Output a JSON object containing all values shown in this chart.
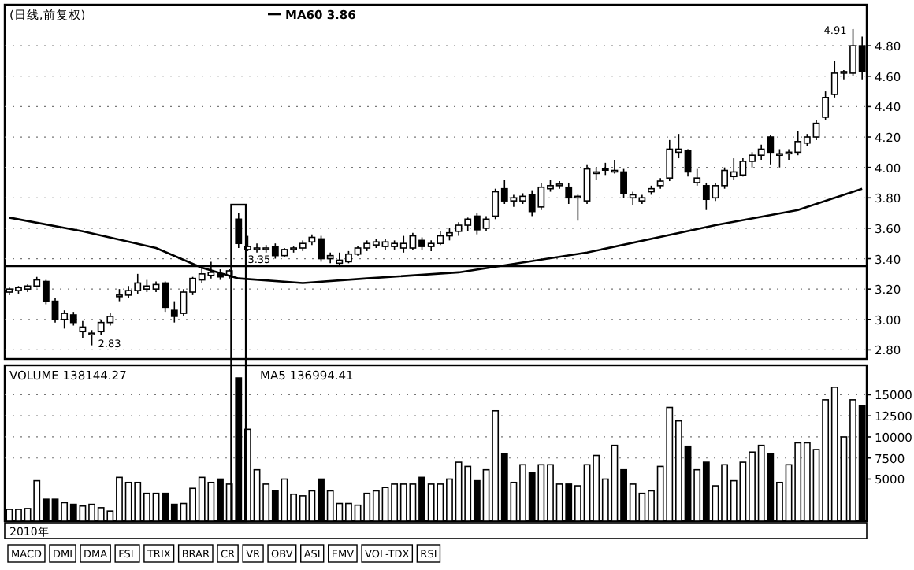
{
  "chart_data": [
    {
      "type": "candlestick",
      "title": "(日线,前复权)",
      "color": "#000000",
      "legend": "top left",
      "grid": "y",
      "categories": [
        null,
        null,
        null,
        null,
        null,
        null,
        null,
        null,
        null,
        null,
        null,
        null,
        null,
        null,
        null,
        null,
        null,
        null,
        null,
        null,
        null,
        null,
        null,
        null,
        null,
        null,
        null,
        null,
        null,
        null,
        null,
        null,
        null,
        null,
        null,
        null,
        null,
        null,
        null,
        null,
        null,
        null,
        null,
        null,
        null,
        null,
        null,
        null,
        null,
        null,
        null,
        null,
        null,
        null,
        null,
        null,
        null,
        null,
        null,
        null,
        null,
        null,
        null,
        null,
        null,
        null,
        null,
        null,
        null,
        null,
        null,
        null,
        null,
        null,
        null,
        null,
        null,
        null,
        null,
        null,
        null,
        null,
        null,
        null,
        null,
        null,
        null,
        null,
        null,
        null,
        null,
        null,
        null,
        null
      ],
      "ohlc": [
        [
          3.18,
          3.21,
          3.16,
          3.2
        ],
        [
          3.19,
          3.22,
          3.17,
          3.21
        ],
        [
          3.2,
          3.23,
          3.18,
          3.22
        ],
        [
          3.22,
          3.28,
          3.21,
          3.26
        ],
        [
          3.25,
          3.26,
          3.1,
          3.12
        ],
        [
          3.12,
          3.14,
          2.98,
          3.0
        ],
        [
          3.0,
          3.06,
          2.94,
          3.04
        ],
        [
          3.03,
          3.05,
          2.96,
          2.98
        ],
        [
          2.92,
          2.99,
          2.88,
          2.95
        ],
        [
          2.9,
          2.93,
          2.83,
          2.91
        ],
        [
          2.92,
          3.0,
          2.9,
          2.98
        ],
        [
          2.98,
          3.04,
          2.96,
          3.02
        ],
        [
          3.15,
          3.2,
          3.12,
          3.16
        ],
        [
          3.16,
          3.22,
          3.14,
          3.19
        ],
        [
          3.19,
          3.3,
          3.17,
          3.24
        ],
        [
          3.2,
          3.26,
          3.18,
          3.22
        ],
        [
          3.2,
          3.25,
          3.18,
          3.23
        ],
        [
          3.24,
          3.25,
          3.05,
          3.08
        ],
        [
          3.06,
          3.12,
          2.98,
          3.02
        ],
        [
          3.04,
          3.2,
          3.02,
          3.18
        ],
        [
          3.18,
          3.28,
          3.16,
          3.27
        ],
        [
          3.26,
          3.34,
          3.24,
          3.3
        ],
        [
          3.29,
          3.38,
          3.27,
          3.31
        ],
        [
          3.3,
          3.33,
          3.26,
          3.28
        ],
        [
          3.29,
          3.33,
          3.27,
          3.32
        ],
        [
          3.66,
          3.7,
          3.47,
          3.5
        ],
        [
          3.46,
          3.55,
          3.45,
          3.48
        ],
        [
          3.46,
          3.5,
          3.44,
          3.47
        ],
        [
          3.46,
          3.49,
          3.44,
          3.47
        ],
        [
          3.48,
          3.5,
          3.4,
          3.42
        ],
        [
          3.42,
          3.47,
          3.41,
          3.46
        ],
        [
          3.46,
          3.48,
          3.44,
          3.47
        ],
        [
          3.47,
          3.52,
          3.45,
          3.5
        ],
        [
          3.51,
          3.56,
          3.49,
          3.54
        ],
        [
          3.53,
          3.55,
          3.38,
          3.4
        ],
        [
          3.4,
          3.44,
          3.37,
          3.42
        ],
        [
          3.37,
          3.44,
          3.36,
          3.39
        ],
        [
          3.38,
          3.45,
          3.37,
          3.43
        ],
        [
          3.43,
          3.48,
          3.42,
          3.47
        ],
        [
          3.47,
          3.52,
          3.45,
          3.5
        ],
        [
          3.49,
          3.53,
          3.47,
          3.51
        ],
        [
          3.48,
          3.53,
          3.46,
          3.51
        ],
        [
          3.48,
          3.52,
          3.46,
          3.5
        ],
        [
          3.47,
          3.55,
          3.44,
          3.5
        ],
        [
          3.47,
          3.57,
          3.46,
          3.55
        ],
        [
          3.52,
          3.54,
          3.46,
          3.48
        ],
        [
          3.48,
          3.52,
          3.45,
          3.5
        ],
        [
          3.5,
          3.58,
          3.49,
          3.55
        ],
        [
          3.55,
          3.6,
          3.52,
          3.57
        ],
        [
          3.58,
          3.64,
          3.55,
          3.62
        ],
        [
          3.62,
          3.67,
          3.58,
          3.66
        ],
        [
          3.68,
          3.7,
          3.56,
          3.59
        ],
        [
          3.6,
          3.68,
          3.58,
          3.66
        ],
        [
          3.68,
          3.86,
          3.66,
          3.84
        ],
        [
          3.86,
          3.92,
          3.76,
          3.78
        ],
        [
          3.78,
          3.82,
          3.74,
          3.8
        ],
        [
          3.78,
          3.83,
          3.76,
          3.81
        ],
        [
          3.82,
          3.85,
          3.68,
          3.71
        ],
        [
          3.74,
          3.9,
          3.72,
          3.87
        ],
        [
          3.86,
          3.92,
          3.84,
          3.88
        ],
        [
          3.88,
          3.91,
          3.86,
          3.89
        ],
        [
          3.87,
          3.9,
          3.76,
          3.8
        ],
        [
          3.8,
          3.82,
          3.65,
          3.81
        ],
        [
          3.78,
          4.02,
          3.76,
          3.99
        ],
        [
          3.96,
          4.0,
          3.92,
          3.97
        ],
        [
          3.99,
          4.03,
          3.95,
          3.99
        ],
        [
          3.97,
          4.05,
          3.96,
          3.98
        ],
        [
          3.97,
          3.99,
          3.8,
          3.83
        ],
        [
          3.8,
          3.84,
          3.75,
          3.82
        ],
        [
          3.78,
          3.82,
          3.76,
          3.8
        ],
        [
          3.84,
          3.88,
          3.82,
          3.86
        ],
        [
          3.88,
          3.93,
          3.86,
          3.91
        ],
        [
          3.93,
          4.18,
          3.91,
          4.12
        ],
        [
          4.1,
          4.22,
          4.06,
          4.12
        ],
        [
          4.11,
          4.12,
          3.94,
          3.97
        ],
        [
          3.9,
          3.99,
          3.88,
          3.93
        ],
        [
          3.88,
          3.9,
          3.72,
          3.79
        ],
        [
          3.8,
          3.9,
          3.78,
          3.88
        ],
        [
          3.88,
          4.0,
          3.86,
          3.98
        ],
        [
          3.94,
          4.06,
          3.92,
          3.97
        ],
        [
          3.95,
          4.06,
          3.94,
          4.04
        ],
        [
          4.04,
          4.1,
          4.0,
          4.08
        ],
        [
          4.08,
          4.15,
          4.05,
          4.12
        ],
        [
          4.2,
          4.21,
          4.02,
          4.1
        ],
        [
          4.08,
          4.12,
          4.0,
          4.09
        ],
        [
          4.09,
          4.12,
          4.05,
          4.1
        ],
        [
          4.1,
          4.24,
          4.08,
          4.17
        ],
        [
          4.16,
          4.22,
          4.14,
          4.2
        ],
        [
          4.2,
          4.31,
          4.18,
          4.29
        ],
        [
          4.33,
          4.5,
          4.31,
          4.46
        ],
        [
          4.48,
          4.7,
          4.46,
          4.62
        ],
        [
          4.62,
          4.64,
          4.58,
          4.63
        ],
        [
          4.62,
          4.91,
          4.6,
          4.8
        ],
        [
          4.8,
          4.86,
          4.58,
          4.63
        ]
      ],
      "series": [
        {
          "name": "MA60 3.86",
          "type": "line",
          "color": "#000000",
          "values": [
            3.67,
            null,
            null,
            null,
            null,
            null,
            null,
            null,
            3.58,
            null,
            null,
            null,
            null,
            null,
            null,
            null,
            3.47,
            null,
            null,
            null,
            null,
            3.34,
            null,
            null,
            null,
            3.27,
            null,
            null,
            null,
            null,
            null,
            null,
            3.24,
            null,
            null,
            null,
            null,
            null,
            null,
            3.27,
            null,
            null,
            null,
            null,
            null,
            null,
            null,
            null,
            null,
            3.31,
            null,
            null,
            null,
            null,
            null,
            null,
            null,
            null,
            null,
            null,
            null,
            null,
            null,
            3.44,
            null,
            null,
            null,
            null,
            null,
            null,
            null,
            null,
            null,
            null,
            null,
            null,
            null,
            3.62,
            null,
            null,
            null,
            null,
            null,
            null,
            null,
            null,
            3.72,
            null,
            null,
            null,
            null,
            null,
            null,
            3.86
          ]
        }
      ],
      "ylim": [
        2.74,
        5.07
      ],
      "yticks": [
        {
          "value": 2.8,
          "label": "2.80"
        },
        {
          "value": 3.0,
          "label": "3.00"
        },
        {
          "value": 3.2,
          "label": "3.20"
        },
        {
          "value": 3.4,
          "label": "3.40"
        },
        {
          "value": 3.6,
          "label": "3.60"
        },
        {
          "value": 3.8,
          "label": "3.80"
        },
        {
          "value": 4.0,
          "label": "4.00"
        },
        {
          "value": 4.2,
          "label": "4.20"
        },
        {
          "value": 4.4,
          "label": "4.40"
        },
        {
          "value": 4.6,
          "label": "4.60"
        },
        {
          "value": 4.8,
          "label": "4.80"
        }
      ],
      "ref_lines": [
        {
          "axis": "y",
          "value": 3.35,
          "label": "3.35"
        }
      ],
      "annotations": [
        "2.83",
        "4.91"
      ]
    },
    {
      "type": "bar",
      "title": "VOLUME 138144.27",
      "grid": "y",
      "categories": [
        null,
        null,
        null,
        null,
        null,
        null,
        null,
        null,
        null,
        null,
        null,
        null,
        null,
        null,
        null,
        null,
        null,
        null,
        null,
        null,
        null,
        null,
        null,
        null,
        null,
        null,
        null,
        null,
        null,
        null,
        null,
        null,
        null,
        null,
        null,
        null,
        null,
        null,
        null,
        null,
        null,
        null,
        null,
        null,
        null,
        null,
        null,
        null,
        null,
        null,
        null,
        null,
        null,
        null,
        null,
        null,
        null,
        null,
        null,
        null,
        null,
        null,
        null,
        null,
        null,
        null,
        null,
        null,
        null,
        null,
        null,
        null,
        null,
        null,
        null,
        null,
        null,
        null,
        null,
        null,
        null,
        null,
        null,
        null,
        null,
        null,
        null,
        null,
        null,
        null,
        null,
        null,
        null,
        null
      ],
      "values": [
        1400,
        1400,
        1500,
        4800,
        2600,
        2600,
        2200,
        2000,
        1800,
        2000,
        1600,
        1200,
        5200,
        4600,
        4600,
        3300,
        3300,
        3300,
        2000,
        2100,
        3900,
        5200,
        4600,
        5000,
        4400,
        17000,
        10900,
        6100,
        4400,
        3600,
        5000,
        3200,
        3000,
        3600,
        5000,
        3600,
        2100,
        2100,
        1900,
        3300,
        3600,
        4000,
        4400,
        4400,
        4400,
        5200,
        4400,
        4400,
        5000,
        7000,
        6500,
        4800,
        6100,
        13100,
        8000,
        4600,
        6700,
        5800,
        6700,
        6700,
        4400,
        4400,
        4200,
        6700,
        7800,
        5000,
        9000,
        6100,
        4400,
        3300,
        3600,
        6500,
        13500,
        11900,
        8900,
        6100,
        7000,
        4200,
        6700,
        4800,
        7000,
        8200,
        9000,
        8000,
        4600,
        6700,
        9300,
        9300,
        8500,
        14400,
        15900,
        10000,
        14400,
        13700
      ],
      "colors": [
        "#ffffff",
        "#ffffff",
        "#ffffff",
        "#ffffff",
        "#000000",
        "#000000",
        "#ffffff",
        "#000000",
        "#ffffff",
        "#ffffff",
        "#ffffff",
        "#ffffff",
        "#ffffff",
        "#ffffff",
        "#ffffff",
        "#ffffff",
        "#ffffff",
        "#000000",
        "#000000",
        "#ffffff",
        "#ffffff",
        "#ffffff",
        "#ffffff",
        "#000000",
        "#ffffff",
        "#000000",
        "#ffffff",
        "#ffffff",
        "#ffffff",
        "#000000",
        "#ffffff",
        "#ffffff",
        "#ffffff",
        "#ffffff",
        "#000000",
        "#ffffff",
        "#ffffff",
        "#ffffff",
        "#ffffff",
        "#ffffff",
        "#ffffff",
        "#ffffff",
        "#ffffff",
        "#ffffff",
        "#ffffff",
        "#000000",
        "#ffffff",
        "#ffffff",
        "#ffffff",
        "#ffffff",
        "#ffffff",
        "#000000",
        "#ffffff",
        "#ffffff",
        "#000000",
        "#ffffff",
        "#ffffff",
        "#000000",
        "#ffffff",
        "#ffffff",
        "#ffffff",
        "#000000",
        "#ffffff",
        "#ffffff",
        "#ffffff",
        "#ffffff",
        "#ffffff",
        "#000000",
        "#ffffff",
        "#ffffff",
        "#ffffff",
        "#ffffff",
        "#ffffff",
        "#ffffff",
        "#000000",
        "#ffffff",
        "#000000",
        "#ffffff",
        "#ffffff",
        "#ffffff",
        "#ffffff",
        "#ffffff",
        "#ffffff",
        "#000000",
        "#ffffff",
        "#ffffff",
        "#ffffff",
        "#ffffff",
        "#ffffff",
        "#ffffff",
        "#ffffff",
        "#ffffff",
        "#ffffff",
        "#000000"
      ],
      "ylim": [
        0,
        18500
      ],
      "yticks": [
        5000,
        7500,
        10000,
        12500,
        15000
      ],
      "annotations": [
        "MA5 136994.41",
        "2010年",
        "MACD",
        "DMI",
        "DMA",
        "FSL",
        "TRIX",
        "BRAR",
        "CR",
        "VR",
        "OBV",
        "ASI",
        "EMV",
        "VOL-TDX",
        "RSI"
      ]
    }
  ]
}
